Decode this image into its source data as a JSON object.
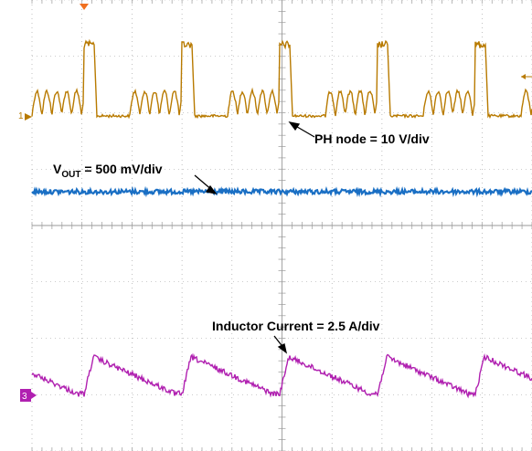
{
  "chart_data": {
    "type": "line",
    "x": [
      0,
      1,
      2,
      3,
      4,
      5,
      6,
      7,
      8,
      9,
      10
    ],
    "series": [],
    "annotations": [
      {
        "main": "PH node = 10 V/div",
        "sub": ""
      },
      {
        "main": "V",
        "sub": "OUT",
        "rest": " = 500 mV/div"
      },
      {
        "main": "Inductor Current = 2.5 A/div",
        "sub": ""
      }
    ],
    "channel_markers": {
      "ch1": "1",
      "ch3": "3"
    },
    "grid": true,
    "colors": {
      "ph_node": "#b87a00",
      "vout": "#1a6fc4",
      "inductor": "#b020b0",
      "grid": "#9a9a9a",
      "ch3_marker": "#b020b0"
    }
  }
}
